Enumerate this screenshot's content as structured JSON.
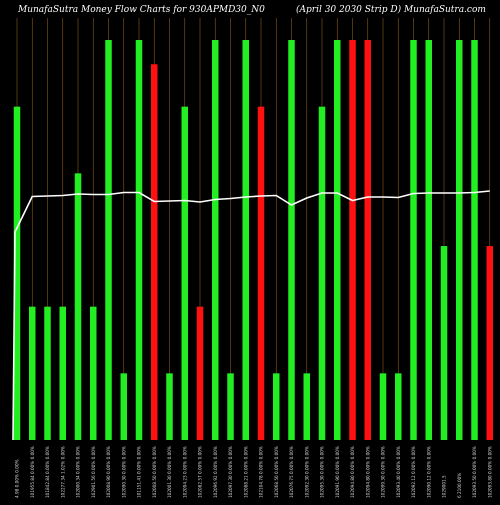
{
  "header": {
    "title_left": "MunafaSutra  Money Flow  Charts for 930APMD30_N0",
    "title_right": "(April  30  2030  Strip D) MunafaSutra.com"
  },
  "colors": {
    "background": "#000000",
    "up": "#22ee22",
    "down": "#ff1111",
    "grid": "#8a5a1c",
    "line": "#ffffff"
  },
  "chart_data": {
    "type": "bar",
    "title": "MunafaSutra  Money Flow  Charts for 930APMD30_N0",
    "subtitle": "(April  30  2030  Strip D) MunafaSutra.com",
    "categories": [
      "4.98 0.00% 0.00%",
      "101955.84 0.00% 0.00%",
      "101842.84 0.00% 0.00%",
      "102277.34 1.02% 0.00%",
      "102000.34 0.00% 0.00%",
      "102901.56 0.00% 0.00%",
      "102008.90 0.00% 0.00%",
      "102090.30 0.00% 0.00%",
      "101151.41 0.00% 0.00%",
      "102008.50 0.00% 0.00%",
      "102001.30 0.00% 0.00%",
      "102094.23 0.00% 0.00%",
      "102082.57 0.00% 0.00%",
      "102096.92 0.00% 0.00%",
      "102097.30 0.00% 0.00%",
      "102088.21 0.00% 0.00%",
      "102104.78 0.00% 0.00%",
      "102068.50 0.00% 0.00%",
      "102076.75 0.00% 0.00%",
      "102092.30 0.00% 0.00%",
      "102095.30 0.00% 0.00%",
      "102091.90 0.00% 0.00%",
      "102094.80 0.00% 0.00%",
      "102094.80 0.00% 0.00%",
      "102099.30 0.00% 0.00%",
      "102093.40 0.00% 0.00%",
      "102092.12 0.00% 0.00%",
      "102090.12 0.00% 0.00%",
      "1029001.5",
      "6 2100.00%",
      "102093.50 0.00% 0.00%",
      "102093.80 0.00% 0.00%"
    ],
    "x": [
      1,
      2,
      3,
      4,
      5,
      6,
      7,
      8,
      9,
      10,
      11,
      12,
      13,
      14,
      15,
      16,
      17,
      18,
      19,
      20,
      21,
      22,
      23,
      24,
      25,
      26,
      27,
      28,
      29,
      30,
      31,
      32
    ],
    "series": [
      {
        "values": [
          55,
          22,
          22,
          22,
          44,
          22,
          66,
          11,
          66,
          62,
          11,
          55,
          22,
          66,
          11,
          66,
          55,
          11,
          66,
          11,
          55,
          66,
          66,
          66,
          11,
          11,
          66,
          66,
          32,
          66,
          66,
          32
        ],
        "directions": [
          "up",
          "up",
          "up",
          "up",
          "up",
          "up",
          "up",
          "up",
          "up",
          "down",
          "up",
          "up",
          "down",
          "up",
          "up",
          "up",
          "down",
          "up",
          "up",
          "up",
          "up",
          "up",
          "down",
          "down",
          "up",
          "up",
          "up",
          "up",
          "up",
          "up",
          "up",
          "down"
        ]
      },
      {
        "values": [
          0,
          48.7,
          48.8,
          48.9,
          49.2,
          49.1,
          49.1,
          49.5,
          49.5,
          47.7,
          47.8,
          47.9,
          47.6,
          48.1,
          48.3,
          48.6,
          48.8,
          48.9,
          47.0,
          48.4,
          49.4,
          49.4,
          47.9,
          48.6,
          48.6,
          48.5,
          49.3,
          49.4,
          49.4,
          49.4,
          49.5,
          49.8
        ]
      }
    ],
    "ylim": [
      0,
      66
    ],
    "grid": true
  }
}
